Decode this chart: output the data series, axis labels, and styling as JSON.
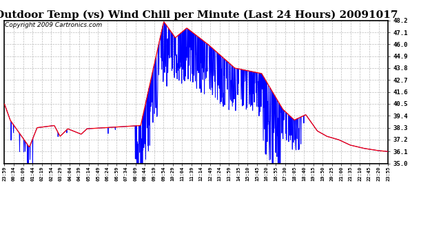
{
  "title": "Outdoor Temp (vs) Wind Chill per Minute (Last 24 Hours) 20091017",
  "copyright": "Copyright 2009 Cartronics.com",
  "ylim": [
    35.0,
    48.2
  ],
  "yticks": [
    35.0,
    36.1,
    37.2,
    38.3,
    39.4,
    40.5,
    41.6,
    42.7,
    43.8,
    44.9,
    46.0,
    47.1,
    48.2
  ],
  "bg_color": "#ffffff",
  "grid_color": "#aaaaaa",
  "red_color": "#ff0000",
  "blue_color": "#0000ff",
  "title_fontsize": 11,
  "copyright_fontsize": 6.5,
  "xtick_labels": [
    "23:59",
    "00:34",
    "01:09",
    "01:44",
    "02:19",
    "02:54",
    "03:29",
    "04:04",
    "04:39",
    "05:14",
    "05:49",
    "06:24",
    "06:59",
    "07:34",
    "08:09",
    "08:44",
    "09:19",
    "09:54",
    "10:29",
    "11:04",
    "11:39",
    "12:14",
    "12:49",
    "13:24",
    "13:59",
    "14:35",
    "15:10",
    "15:45",
    "16:20",
    "16:55",
    "17:30",
    "18:05",
    "18:40",
    "19:15",
    "19:50",
    "20:25",
    "21:00",
    "21:35",
    "22:10",
    "22:45",
    "23:20",
    "23:55"
  ]
}
